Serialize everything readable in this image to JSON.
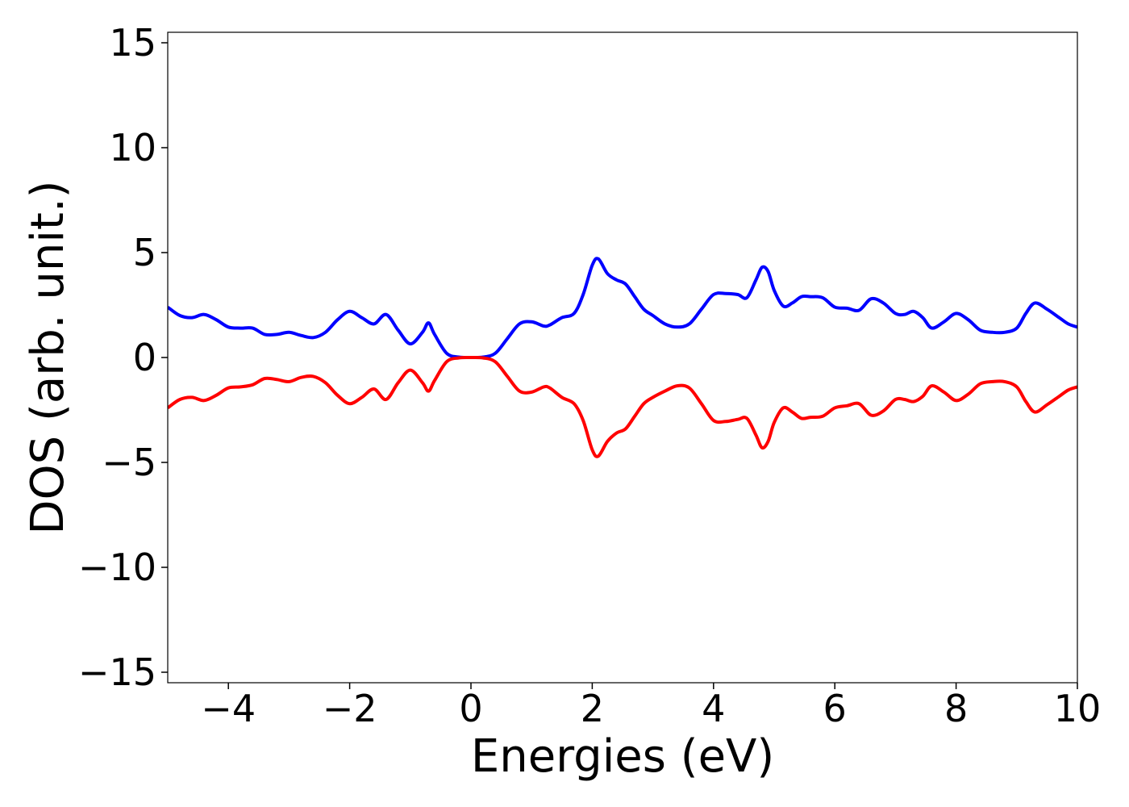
{
  "chart_data": {
    "type": "line",
    "title": "",
    "xlabel": "Energies (eV)",
    "ylabel": "DOS (arb. unit.)",
    "xlim": [
      -5,
      10
    ],
    "ylim": [
      -15.5,
      15.5
    ],
    "grid": false,
    "x_ticks": [
      -4,
      -2,
      0,
      2,
      4,
      6,
      8,
      10
    ],
    "x_tick_labels": [
      "−4",
      "−2",
      "0",
      "2",
      "4",
      "6",
      "8",
      "10"
    ],
    "y_ticks": [
      -15,
      -10,
      -5,
      0,
      5,
      10,
      15
    ],
    "y_tick_labels": [
      "−15",
      "−10",
      "−5",
      "0",
      "5",
      "10",
      "15"
    ],
    "series": [
      {
        "color": "#0000ff",
        "points": [
          [
            -5.0,
            2.4
          ],
          [
            -4.8,
            2.0
          ],
          [
            -4.6,
            1.9
          ],
          [
            -4.4,
            2.05
          ],
          [
            -4.2,
            1.8
          ],
          [
            -4.0,
            1.45
          ],
          [
            -3.8,
            1.4
          ],
          [
            -3.6,
            1.4
          ],
          [
            -3.4,
            1.1
          ],
          [
            -3.2,
            1.1
          ],
          [
            -3.0,
            1.2
          ],
          [
            -2.8,
            1.05
          ],
          [
            -2.6,
            0.95
          ],
          [
            -2.4,
            1.2
          ],
          [
            -2.2,
            1.8
          ],
          [
            -2.0,
            2.2
          ],
          [
            -1.8,
            1.9
          ],
          [
            -1.6,
            1.6
          ],
          [
            -1.4,
            2.05
          ],
          [
            -1.2,
            1.3
          ],
          [
            -1.0,
            0.65
          ],
          [
            -0.8,
            1.2
          ],
          [
            -0.7,
            1.65
          ],
          [
            -0.6,
            1.1
          ],
          [
            -0.4,
            0.2
          ],
          [
            -0.2,
            0.02
          ],
          [
            0.0,
            0.0
          ],
          [
            0.2,
            0.02
          ],
          [
            0.4,
            0.2
          ],
          [
            0.6,
            0.9
          ],
          [
            0.8,
            1.6
          ],
          [
            1.0,
            1.7
          ],
          [
            1.2,
            1.5
          ],
          [
            1.3,
            1.55
          ],
          [
            1.5,
            1.9
          ],
          [
            1.7,
            2.1
          ],
          [
            1.85,
            3.0
          ],
          [
            2.0,
            4.4
          ],
          [
            2.1,
            4.7
          ],
          [
            2.25,
            4.0
          ],
          [
            2.4,
            3.7
          ],
          [
            2.55,
            3.5
          ],
          [
            2.7,
            2.9
          ],
          [
            2.85,
            2.3
          ],
          [
            3.0,
            2.0
          ],
          [
            3.2,
            1.6
          ],
          [
            3.4,
            1.45
          ],
          [
            3.6,
            1.6
          ],
          [
            3.8,
            2.3
          ],
          [
            4.0,
            3.0
          ],
          [
            4.2,
            3.05
          ],
          [
            4.4,
            3.0
          ],
          [
            4.55,
            2.85
          ],
          [
            4.7,
            3.7
          ],
          [
            4.8,
            4.3
          ],
          [
            4.9,
            4.1
          ],
          [
            5.0,
            3.2
          ],
          [
            5.15,
            2.45
          ],
          [
            5.3,
            2.6
          ],
          [
            5.45,
            2.9
          ],
          [
            5.6,
            2.9
          ],
          [
            5.8,
            2.85
          ],
          [
            6.0,
            2.4
          ],
          [
            6.2,
            2.35
          ],
          [
            6.4,
            2.25
          ],
          [
            6.6,
            2.8
          ],
          [
            6.8,
            2.6
          ],
          [
            7.0,
            2.1
          ],
          [
            7.15,
            2.05
          ],
          [
            7.3,
            2.2
          ],
          [
            7.45,
            1.9
          ],
          [
            7.6,
            1.4
          ],
          [
            7.8,
            1.7
          ],
          [
            8.0,
            2.1
          ],
          [
            8.2,
            1.8
          ],
          [
            8.4,
            1.3
          ],
          [
            8.6,
            1.2
          ],
          [
            8.8,
            1.2
          ],
          [
            9.0,
            1.4
          ],
          [
            9.15,
            2.1
          ],
          [
            9.3,
            2.6
          ],
          [
            9.5,
            2.3
          ],
          [
            9.7,
            1.9
          ],
          [
            9.85,
            1.6
          ],
          [
            10.0,
            1.45
          ]
        ]
      },
      {
        "color": "#ff0000",
        "points": [
          [
            -5.0,
            -2.4
          ],
          [
            -4.8,
            -2.0
          ],
          [
            -4.6,
            -1.9
          ],
          [
            -4.4,
            -2.05
          ],
          [
            -4.2,
            -1.8
          ],
          [
            -4.0,
            -1.45
          ],
          [
            -3.8,
            -1.4
          ],
          [
            -3.6,
            -1.3
          ],
          [
            -3.4,
            -1.0
          ],
          [
            -3.2,
            -1.05
          ],
          [
            -3.0,
            -1.15
          ],
          [
            -2.8,
            -0.95
          ],
          [
            -2.6,
            -0.9
          ],
          [
            -2.4,
            -1.2
          ],
          [
            -2.2,
            -1.8
          ],
          [
            -2.0,
            -2.2
          ],
          [
            -1.8,
            -1.9
          ],
          [
            -1.6,
            -1.5
          ],
          [
            -1.4,
            -2.0
          ],
          [
            -1.2,
            -1.2
          ],
          [
            -1.0,
            -0.6
          ],
          [
            -0.8,
            -1.2
          ],
          [
            -0.7,
            -1.6
          ],
          [
            -0.6,
            -1.1
          ],
          [
            -0.4,
            -0.2
          ],
          [
            -0.2,
            -0.02
          ],
          [
            0.0,
            0.0
          ],
          [
            0.2,
            -0.02
          ],
          [
            0.4,
            -0.2
          ],
          [
            0.6,
            -0.9
          ],
          [
            0.8,
            -1.6
          ],
          [
            1.0,
            -1.65
          ],
          [
            1.2,
            -1.4
          ],
          [
            1.3,
            -1.45
          ],
          [
            1.5,
            -1.9
          ],
          [
            1.7,
            -2.2
          ],
          [
            1.85,
            -3.0
          ],
          [
            2.0,
            -4.4
          ],
          [
            2.1,
            -4.7
          ],
          [
            2.25,
            -4.0
          ],
          [
            2.4,
            -3.6
          ],
          [
            2.55,
            -3.4
          ],
          [
            2.7,
            -2.8
          ],
          [
            2.85,
            -2.2
          ],
          [
            3.0,
            -1.9
          ],
          [
            3.2,
            -1.6
          ],
          [
            3.4,
            -1.35
          ],
          [
            3.6,
            -1.45
          ],
          [
            3.8,
            -2.2
          ],
          [
            4.0,
            -3.0
          ],
          [
            4.2,
            -3.05
          ],
          [
            4.4,
            -2.95
          ],
          [
            4.55,
            -2.9
          ],
          [
            4.7,
            -3.7
          ],
          [
            4.8,
            -4.3
          ],
          [
            4.9,
            -4.0
          ],
          [
            5.0,
            -3.1
          ],
          [
            5.15,
            -2.4
          ],
          [
            5.3,
            -2.6
          ],
          [
            5.45,
            -2.9
          ],
          [
            5.6,
            -2.85
          ],
          [
            5.8,
            -2.8
          ],
          [
            6.0,
            -2.4
          ],
          [
            6.2,
            -2.3
          ],
          [
            6.4,
            -2.2
          ],
          [
            6.6,
            -2.75
          ],
          [
            6.8,
            -2.55
          ],
          [
            7.0,
            -2.0
          ],
          [
            7.15,
            -2.0
          ],
          [
            7.3,
            -2.1
          ],
          [
            7.45,
            -1.85
          ],
          [
            7.6,
            -1.35
          ],
          [
            7.8,
            -1.65
          ],
          [
            8.0,
            -2.05
          ],
          [
            8.2,
            -1.75
          ],
          [
            8.4,
            -1.25
          ],
          [
            8.6,
            -1.15
          ],
          [
            8.8,
            -1.15
          ],
          [
            9.0,
            -1.4
          ],
          [
            9.15,
            -2.1
          ],
          [
            9.3,
            -2.6
          ],
          [
            9.5,
            -2.25
          ],
          [
            9.7,
            -1.85
          ],
          [
            9.85,
            -1.55
          ],
          [
            10.0,
            -1.4
          ]
        ]
      }
    ]
  }
}
